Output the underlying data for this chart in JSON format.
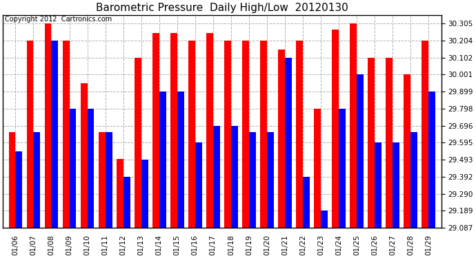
{
  "title": "Barometric Pressure  Daily High/Low  20120130",
  "copyright": "Copyright 2012  Cartronics.com",
  "dates": [
    "01/06",
    "01/07",
    "01/08",
    "01/09",
    "01/10",
    "01/11",
    "01/12",
    "01/13",
    "01/14",
    "01/15",
    "01/16",
    "01/17",
    "01/18",
    "01/19",
    "01/20",
    "01/21",
    "01/22",
    "01/23",
    "01/24",
    "01/25",
    "01/26",
    "01/27",
    "01/28",
    "01/29"
  ],
  "highs": [
    29.66,
    30.204,
    30.305,
    30.204,
    29.95,
    29.66,
    29.5,
    30.102,
    30.25,
    30.25,
    30.204,
    30.25,
    30.204,
    30.204,
    30.204,
    30.15,
    30.204,
    29.798,
    30.27,
    30.305,
    30.102,
    30.102,
    30.001,
    30.204
  ],
  "lows": [
    29.543,
    29.66,
    30.204,
    29.798,
    29.798,
    29.66,
    29.392,
    29.493,
    29.899,
    29.899,
    29.595,
    29.696,
    29.696,
    29.66,
    29.66,
    30.102,
    29.392,
    29.189,
    29.798,
    30.001,
    29.595,
    29.595,
    29.66,
    29.899
  ],
  "high_color": "#ff0000",
  "low_color": "#0000ff",
  "bg_color": "#ffffff",
  "plot_bg_color": "#ffffff",
  "grid_color": "#b0b0b0",
  "ylim_min": 29.087,
  "ylim_max": 30.357,
  "yticks": [
    29.087,
    29.189,
    29.29,
    29.392,
    29.493,
    29.595,
    29.696,
    29.798,
    29.899,
    30.001,
    30.102,
    30.204,
    30.305
  ],
  "title_fontsize": 11,
  "copyright_fontsize": 7,
  "tick_fontsize": 7.5,
  "bar_width": 0.38
}
